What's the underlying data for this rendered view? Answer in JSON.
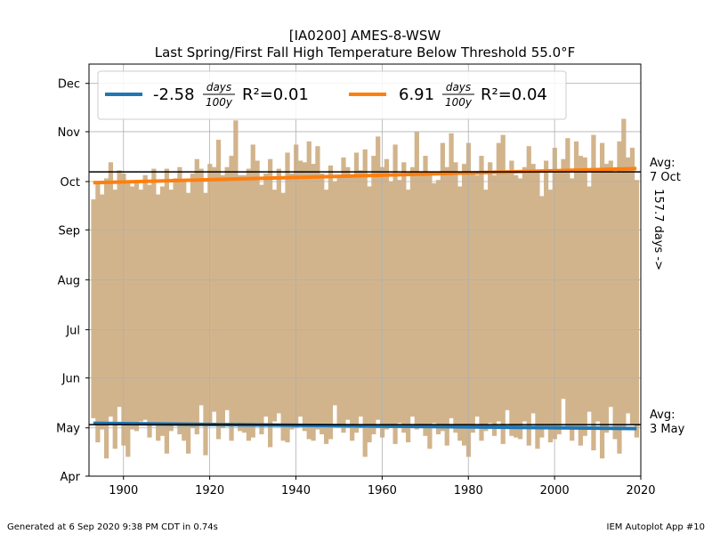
{
  "chart_data": {
    "type": "bar",
    "title": "[IA0200] AMES-8-WSW",
    "subtitle": "Last Spring/First Fall High Temperature Below Threshold 55.0°F",
    "xlabel": "",
    "ylabel": "",
    "xlim": [
      1892,
      2020
    ],
    "x_ticks": [
      1900,
      1920,
      1940,
      1960,
      1980,
      2000,
      2020
    ],
    "y_ticks": [
      {
        "label": "Apr",
        "doy": 91
      },
      {
        "label": "May",
        "doy": 121
      },
      {
        "label": "Jun",
        "doy": 152
      },
      {
        "label": "Jul",
        "doy": 182
      },
      {
        "label": "Aug",
        "doy": 213
      },
      {
        "label": "Sep",
        "doy": 244
      },
      {
        "label": "Oct",
        "doy": 274
      },
      {
        "label": "Nov",
        "doy": 305
      },
      {
        "label": "Dec",
        "doy": 335
      }
    ],
    "ylim_doy": [
      91,
      347
    ],
    "grid": true,
    "legend_position": "top",
    "bar_color": "#d2b48c",
    "years": [
      1893,
      1894,
      1895,
      1896,
      1897,
      1898,
      1899,
      1900,
      1901,
      1902,
      1903,
      1904,
      1905,
      1906,
      1907,
      1908,
      1909,
      1910,
      1911,
      1912,
      1913,
      1914,
      1915,
      1916,
      1917,
      1918,
      1919,
      1920,
      1921,
      1922,
      1923,
      1924,
      1925,
      1926,
      1927,
      1928,
      1929,
      1930,
      1931,
      1932,
      1933,
      1934,
      1935,
      1936,
      1937,
      1938,
      1939,
      1940,
      1941,
      1942,
      1943,
      1944,
      1945,
      1946,
      1947,
      1948,
      1949,
      1950,
      1951,
      1952,
      1953,
      1954,
      1955,
      1956,
      1957,
      1958,
      1959,
      1960,
      1961,
      1962,
      1963,
      1964,
      1965,
      1966,
      1967,
      1968,
      1969,
      1970,
      1971,
      1972,
      1973,
      1974,
      1975,
      1976,
      1977,
      1978,
      1979,
      1980,
      1981,
      1982,
      1983,
      1984,
      1985,
      1986,
      1987,
      1988,
      1989,
      1990,
      1991,
      1992,
      1993,
      1994,
      1995,
      1996,
      1997,
      1998,
      1999,
      2000,
      2001,
      2002,
      2003,
      2004,
      2005,
      2006,
      2007,
      2008,
      2009,
      2010,
      2011,
      2012,
      2013,
      2014,
      2015,
      2016,
      2017,
      2018,
      2019
    ],
    "spring_doy": [
      127,
      112,
      120,
      102,
      128,
      108,
      134,
      110,
      103,
      120,
      119,
      125,
      126,
      115,
      123,
      113,
      116,
      105,
      119,
      124,
      117,
      113,
      105,
      121,
      117,
      135,
      104,
      124,
      131,
      114,
      121,
      132,
      113,
      124,
      119,
      118,
      113,
      115,
      124,
      117,
      128,
      109,
      125,
      130,
      113,
      112,
      120,
      121,
      128,
      119,
      114,
      113,
      120,
      117,
      111,
      114,
      135,
      122,
      118,
      126,
      113,
      118,
      128,
      103,
      112,
      117,
      126,
      115,
      120,
      121,
      111,
      124,
      118,
      112,
      128,
      120,
      122,
      116,
      108,
      124,
      117,
      119,
      110,
      127,
      118,
      113,
      110,
      103,
      118,
      128,
      113,
      119,
      124,
      116,
      125,
      111,
      132,
      116,
      115,
      114,
      125,
      110,
      130,
      108,
      115,
      121,
      112,
      114,
      117,
      139,
      121,
      113,
      122,
      110,
      116,
      131,
      107,
      125,
      102,
      118,
      134,
      114,
      105,
      120,
      130,
      123,
      115
    ],
    "fall_doy": [
      263,
      274,
      266,
      276,
      286,
      269,
      281,
      279,
      273,
      271,
      275,
      269,
      278,
      272,
      282,
      266,
      271,
      282,
      269,
      276,
      283,
      275,
      267,
      279,
      288,
      282,
      267,
      285,
      283,
      300,
      278,
      283,
      290,
      312,
      278,
      278,
      282,
      297,
      287,
      272,
      279,
      288,
      269,
      282,
      267,
      292,
      279,
      297,
      287,
      286,
      299,
      285,
      296,
      279,
      269,
      284,
      274,
      278,
      289,
      283,
      277,
      292,
      281,
      294,
      271,
      290,
      302,
      283,
      288,
      274,
      297,
      275,
      286,
      269,
      283,
      305,
      280,
      290,
      279,
      273,
      275,
      298,
      283,
      304,
      286,
      271,
      285,
      298,
      280,
      278,
      290,
      269,
      286,
      278,
      298,
      303,
      279,
      287,
      278,
      276,
      283,
      296,
      285,
      280,
      265,
      287,
      269,
      295,
      280,
      288,
      301,
      276,
      299,
      290,
      289,
      271,
      303,
      282,
      298,
      285,
      287,
      280,
      299,
      313,
      289,
      295,
      275
    ],
    "series": [
      {
        "name": "spring",
        "color": "#1f77b4",
        "slope_label": "-2.58",
        "r2_label": "R²=0.01",
        "line_doy": [
          123.8,
          120.6
        ]
      },
      {
        "name": "fall",
        "color": "#ff7f0e",
        "slope_label": "6.91",
        "r2_label": "R²=0.04",
        "line_doy": [
          273.3,
          282.1
        ]
      }
    ],
    "legend_unit_num": "days",
    "legend_unit_den": "100y",
    "avg_fall": {
      "doy": 280,
      "label_top": "Avg:",
      "label_bottom": "7 Oct"
    },
    "avg_spring": {
      "doy": 123,
      "label_top": "Avg:",
      "label_bottom": "3 May"
    },
    "avg_days_label": "157.7 days ->"
  },
  "footer": {
    "left": "Generated at 6 Sep 2020 9:38 PM CDT in 0.74s",
    "right": "IEM Autoplot App #10"
  }
}
